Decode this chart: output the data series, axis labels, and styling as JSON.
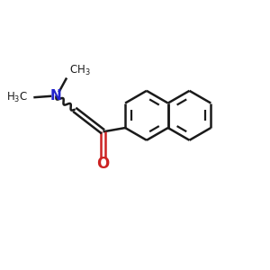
{
  "bg_color": "#ffffff",
  "bond_color": "#1a1a1a",
  "N_color": "#2222cc",
  "O_color": "#cc2222",
  "lw": 1.8,
  "lw_inner": 1.6,
  "fig_size": [
    3.0,
    3.0
  ],
  "dpi": 100,
  "ring_r": 0.95,
  "xlim": [
    0,
    10
  ],
  "ylim": [
    0,
    10
  ]
}
